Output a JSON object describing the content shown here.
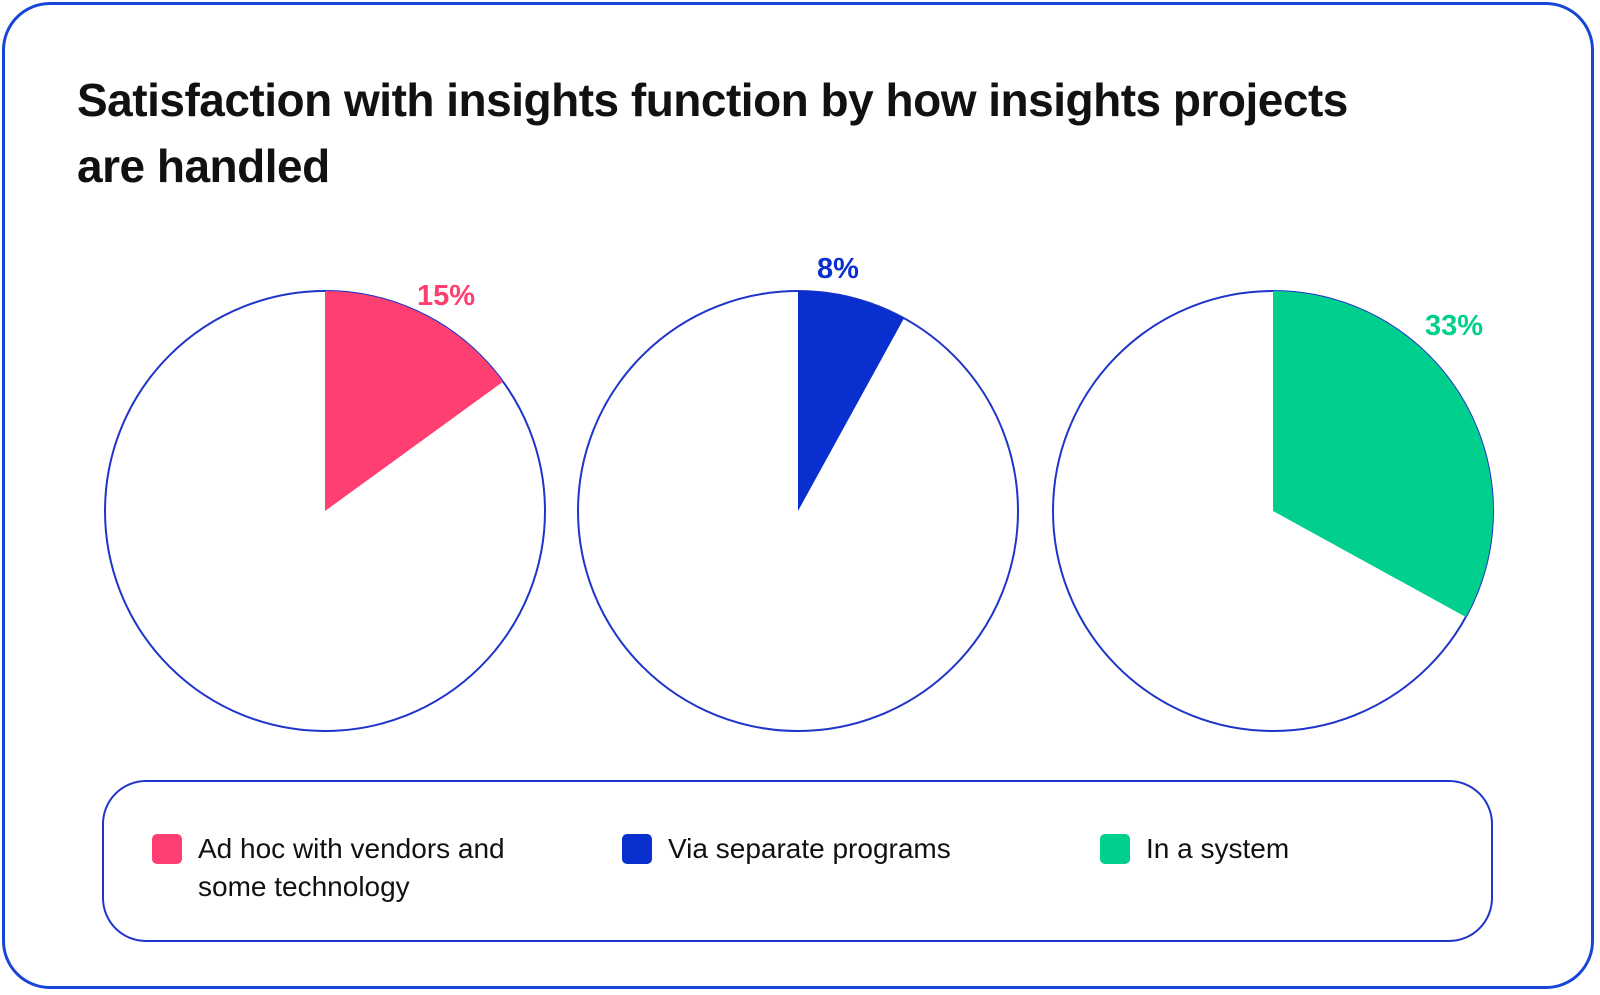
{
  "title": "Satisfaction with insights function by how insights projects are handled",
  "colors": {
    "border": "#1f35c9",
    "pink": "#ff3f72",
    "blue": "#0a2fcf",
    "green": "#00cf8d"
  },
  "chart_data": [
    {
      "type": "pie",
      "name": "Ad hoc with vendors and some technology",
      "value": 15,
      "label": "15%",
      "color": "#ff3f72"
    },
    {
      "type": "pie",
      "name": "Via separate programs",
      "value": 8,
      "label": "8%",
      "color": "#0a2fcf"
    },
    {
      "type": "pie",
      "name": "In a system",
      "value": 33,
      "label": "33%",
      "color": "#00cf8d"
    }
  ],
  "legend": [
    {
      "label": "Ad hoc with vendors and some technology",
      "color": "#ff3f72"
    },
    {
      "label": "Via separate programs",
      "color": "#0a2fcf"
    },
    {
      "label": "In a system",
      "color": "#00cf8d"
    }
  ]
}
